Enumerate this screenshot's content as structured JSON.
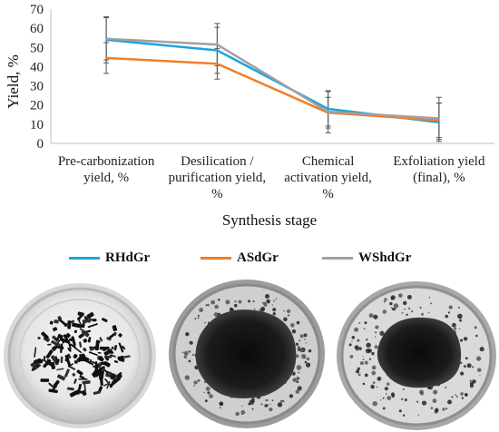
{
  "chart_data": {
    "type": "line",
    "categories": [
      [
        "Pre-carbonization",
        "yield, %"
      ],
      [
        "Desilication /",
        "purification yield,",
        "%"
      ],
      [
        "Chemical",
        "activation yield,",
        "%"
      ],
      [
        "Exfoliation yield",
        "(final), %"
      ]
    ],
    "xlabel": "Synthesis stage",
    "ylabel": "Yield, %",
    "ylim": [
      0,
      70
    ],
    "yticks": [
      0,
      10,
      20,
      30,
      40,
      50,
      60,
      70
    ],
    "grid": false,
    "legend_position": "bottom",
    "series": [
      {
        "name": "RHdGr",
        "color": "#1ca3dc",
        "values": [
          54,
          48.5,
          18,
          11
        ],
        "errors": [
          12,
          12,
          9,
          10
        ]
      },
      {
        "name": "ASdGr",
        "color": "#f07f2a",
        "values": [
          44.5,
          41.5,
          16,
          12
        ],
        "errors": [
          8,
          8,
          8,
          9
        ]
      },
      {
        "name": "WShdGr",
        "color": "#a0a0a0",
        "values": [
          54.5,
          51.5,
          16.5,
          13
        ],
        "errors": [
          11,
          11,
          11,
          11
        ]
      }
    ]
  },
  "photos": [
    {
      "name": "rhdgr-sample-photo"
    },
    {
      "name": "asdgr-sample-photo"
    },
    {
      "name": "wshdgr-sample-photo"
    }
  ]
}
